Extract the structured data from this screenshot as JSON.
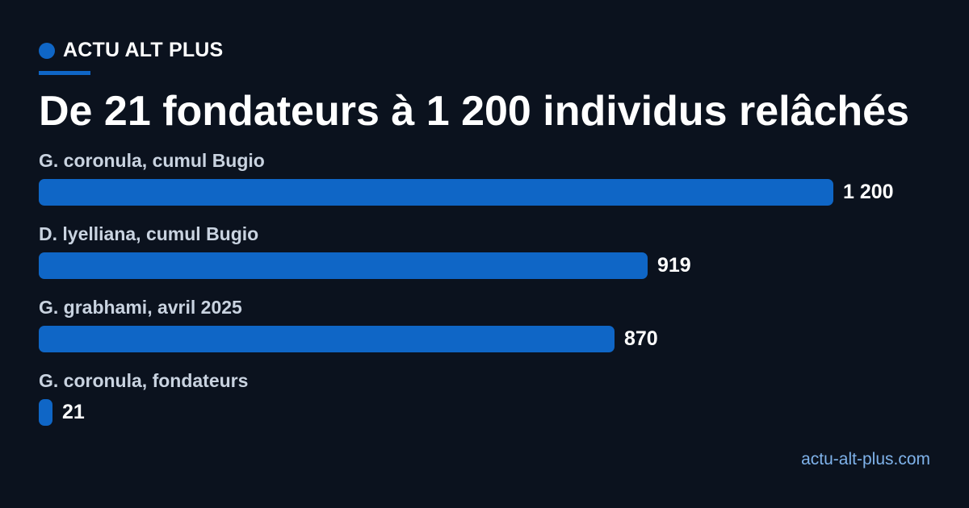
{
  "brand": {
    "name": "ACTU ALT PLUS",
    "accent_color": "#0f66c6"
  },
  "chart_data": {
    "type": "bar",
    "orientation": "horizontal",
    "title": "De 21 fondateurs à 1 200 individus relâchés",
    "categories": [
      "G. coronula, cumul Bugio",
      "D. lyelliana, cumul Bugio",
      "G. grabhami, avril 2025",
      "G. coronula, fondateurs"
    ],
    "values": [
      1200,
      919,
      870,
      21
    ],
    "value_labels": [
      "1 200",
      "919",
      "870",
      "21"
    ],
    "xlim": [
      0,
      1200
    ],
    "bar_color": "#0f66c6",
    "grid": false,
    "legend": "none"
  },
  "footer": {
    "site": "actu-alt-plus.com"
  }
}
